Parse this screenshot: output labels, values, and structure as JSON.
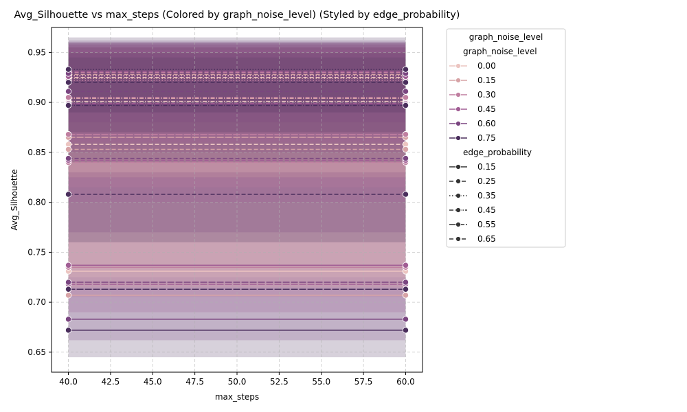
{
  "chart_data": {
    "type": "line",
    "title": "Avg_Silhouette vs max_steps (Colored by graph_noise_level) (Styled by edge_probability)",
    "xlabel": "max_steps",
    "ylabel": "Avg_Silhouette",
    "xlim": [
      39,
      61
    ],
    "ylim": [
      0.63,
      0.975
    ],
    "x_ticks": [
      "40.0",
      "42.5",
      "45.0",
      "47.5",
      "50.0",
      "52.5",
      "55.0",
      "57.5",
      "60.0"
    ],
    "y_ticks": [
      "0.65",
      "0.70",
      "0.75",
      "0.80",
      "0.85",
      "0.90",
      "0.95"
    ],
    "grid": true,
    "legend_placement": "outside-right",
    "x": [
      40,
      60
    ],
    "legend": {
      "title": "graph_noise_level",
      "hue_header": "graph_noise_level",
      "hue_entries": [
        {
          "label": "0.00",
          "color": "#ecc5c1"
        },
        {
          "label": "0.15",
          "color": "#d7a3a6"
        },
        {
          "label": "0.30",
          "color": "#c07fa0"
        },
        {
          "label": "0.45",
          "color": "#a15d94"
        },
        {
          "label": "0.60",
          "color": "#7a4580"
        },
        {
          "label": "0.75",
          "color": "#4a2e5c"
        }
      ],
      "style_header": "edge_probability",
      "style_entries": [
        {
          "label": "0.15",
          "dash": "solid"
        },
        {
          "label": "0.25",
          "dash": "dashed"
        },
        {
          "label": "0.35",
          "dash": "dotted"
        },
        {
          "label": "0.45",
          "dash": "dashdot"
        },
        {
          "label": "0.55",
          "dash": "longdash"
        },
        {
          "label": "0.65",
          "dash": "dashed"
        }
      ]
    },
    "series": [
      {
        "noise": "0.00",
        "edge": "0.15",
        "y": 0.731
      },
      {
        "noise": "0.00",
        "edge": "0.25",
        "y": 0.858
      },
      {
        "noise": "0.00",
        "edge": "0.35",
        "y": 0.927
      },
      {
        "noise": "0.00",
        "edge": "0.45",
        "y": 0.901
      },
      {
        "noise": "0.00",
        "edge": "0.55",
        "y": 0.868
      },
      {
        "noise": "0.00",
        "edge": "0.65",
        "y": 0.925
      },
      {
        "noise": "0.15",
        "edge": "0.15",
        "y": 0.707
      },
      {
        "noise": "0.15",
        "edge": "0.25",
        "y": 0.853
      },
      {
        "noise": "0.15",
        "edge": "0.35",
        "y": 0.924
      },
      {
        "noise": "0.15",
        "edge": "0.45",
        "y": 0.904
      },
      {
        "noise": "0.15",
        "edge": "0.55",
        "y": 0.865
      },
      {
        "noise": "0.15",
        "edge": "0.65",
        "y": 0.928
      },
      {
        "noise": "0.30",
        "edge": "0.15",
        "y": 0.735
      },
      {
        "noise": "0.30",
        "edge": "0.25",
        "y": 0.84
      },
      {
        "noise": "0.30",
        "edge": "0.35",
        "y": 0.922
      },
      {
        "noise": "0.30",
        "edge": "0.45",
        "y": 0.905
      },
      {
        "noise": "0.30",
        "edge": "0.55",
        "y": 0.868
      },
      {
        "noise": "0.30",
        "edge": "0.65",
        "y": 0.93
      },
      {
        "noise": "0.45",
        "edge": "0.15",
        "y": 0.737
      },
      {
        "noise": "0.45",
        "edge": "0.25",
        "y": 0.842
      },
      {
        "noise": "0.45",
        "edge": "0.35",
        "y": 0.926
      },
      {
        "noise": "0.45",
        "edge": "0.45",
        "y": 0.899
      },
      {
        "noise": "0.45",
        "edge": "0.55",
        "y": 0.718
      },
      {
        "noise": "0.45",
        "edge": "0.65",
        "y": 0.931
      },
      {
        "noise": "0.60",
        "edge": "0.15",
        "y": 0.683
      },
      {
        "noise": "0.60",
        "edge": "0.25",
        "y": 0.844
      },
      {
        "noise": "0.60",
        "edge": "0.35",
        "y": 0.929
      },
      {
        "noise": "0.60",
        "edge": "0.45",
        "y": 0.898
      },
      {
        "noise": "0.60",
        "edge": "0.55",
        "y": 0.72
      },
      {
        "noise": "0.60",
        "edge": "0.65",
        "y": 0.911
      },
      {
        "noise": "0.75",
        "edge": "0.15",
        "y": 0.672
      },
      {
        "noise": "0.75",
        "edge": "0.25",
        "y": 0.808
      },
      {
        "noise": "0.75",
        "edge": "0.35",
        "y": 0.933
      },
      {
        "noise": "0.75",
        "edge": "0.45",
        "y": 0.897
      },
      {
        "noise": "0.75",
        "edge": "0.55",
        "y": 0.713
      },
      {
        "noise": "0.75",
        "edge": "0.65",
        "y": 0.92
      }
    ],
    "confidence_bands": [
      {
        "noise": "0.75",
        "lo": 0.645,
        "hi": 0.965
      },
      {
        "noise": "0.60",
        "lo": 0.662,
        "hi": 0.962
      },
      {
        "noise": "0.45",
        "lo": 0.69,
        "hi": 0.96
      },
      {
        "noise": "0.30",
        "lo": 0.705,
        "hi": 0.958
      },
      {
        "noise": "0.15",
        "lo": 0.715,
        "hi": 0.955
      },
      {
        "noise": "0.00",
        "lo": 0.725,
        "hi": 0.95
      },
      {
        "noise": "0.75",
        "lo": 0.76,
        "hi": 0.955
      },
      {
        "noise": "0.60",
        "lo": 0.77,
        "hi": 0.958
      },
      {
        "noise": "0.45",
        "lo": 0.8,
        "hi": 0.96
      },
      {
        "noise": "0.30",
        "lo": 0.815,
        "hi": 0.955
      },
      {
        "noise": "0.15",
        "lo": 0.825,
        "hi": 0.95
      },
      {
        "noise": "0.00",
        "lo": 0.83,
        "hi": 0.945
      },
      {
        "noise": "0.75",
        "lo": 0.84,
        "hi": 0.96
      },
      {
        "noise": "0.60",
        "lo": 0.85,
        "hi": 0.955
      },
      {
        "noise": "0.45",
        "lo": 0.86,
        "hi": 0.952
      },
      {
        "noise": "0.75",
        "lo": 0.87,
        "hi": 0.95
      },
      {
        "noise": "0.60",
        "lo": 0.88,
        "hi": 0.948
      },
      {
        "noise": "0.75",
        "lo": 0.89,
        "hi": 0.945
      }
    ]
  }
}
